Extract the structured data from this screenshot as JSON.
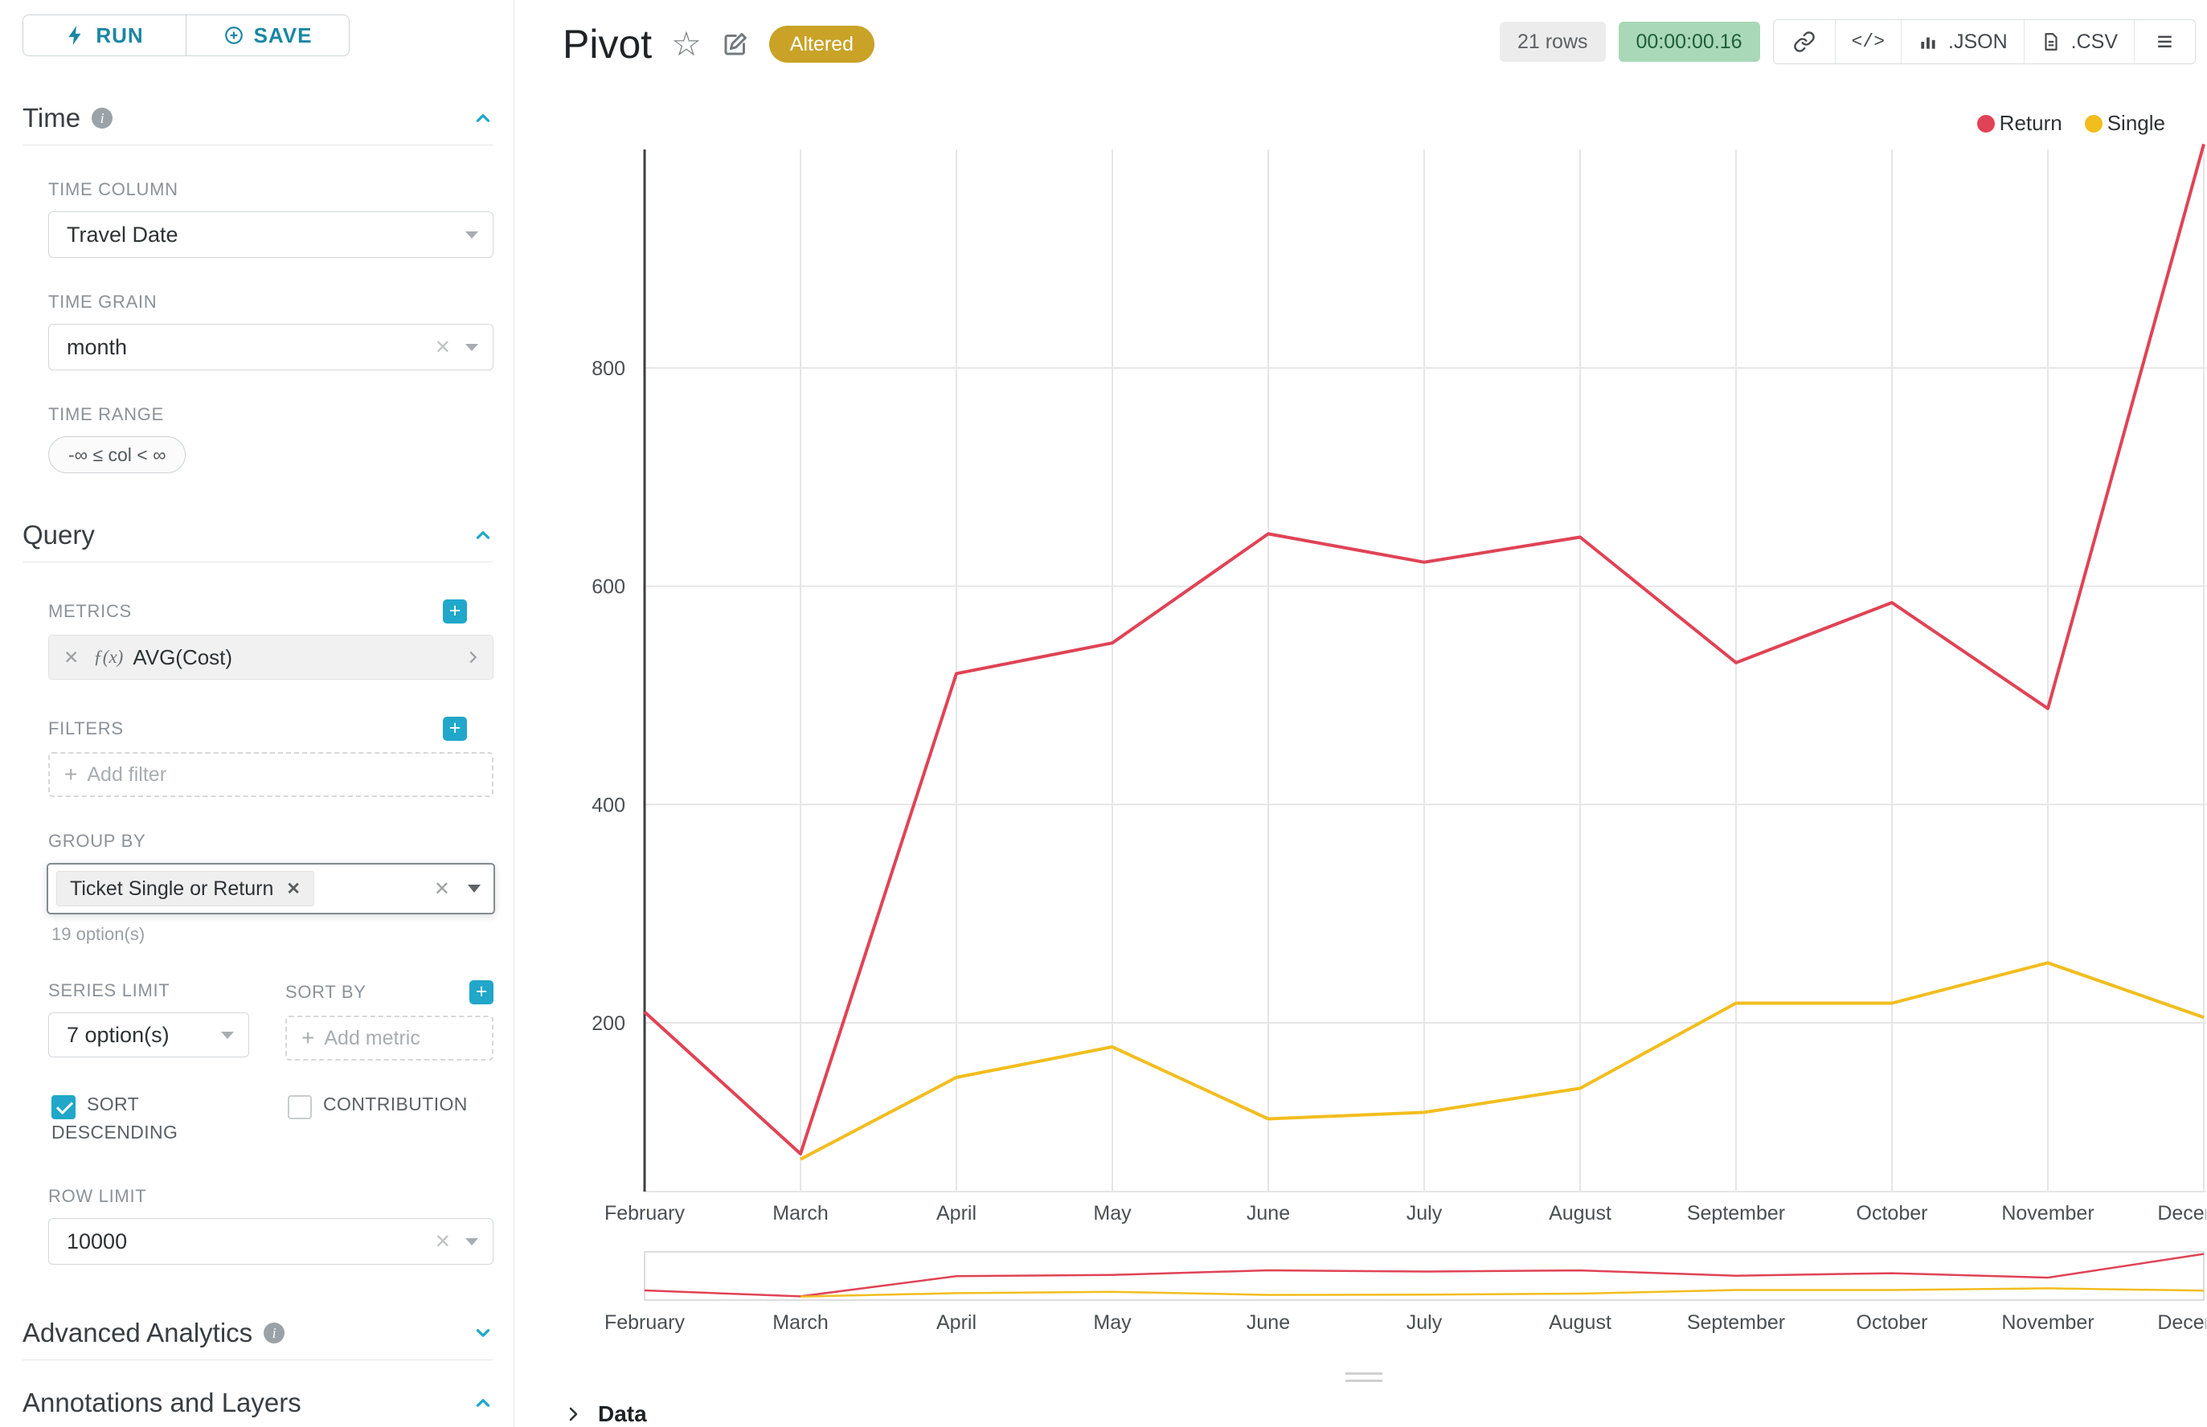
{
  "colors": {
    "accent_teal": "#20a7c9",
    "series_return": "#e04355",
    "series_single": "#f2bd1e",
    "altered_badge_bg": "#c9a227",
    "timer_badge_bg": "#a9d8b8",
    "timer_badge_text": "#1e5f38"
  },
  "sidebar": {
    "run_label": "RUN",
    "save_label": "SAVE",
    "time": {
      "title": "Time",
      "time_column_label": "TIME COLUMN",
      "time_column_value": "Travel Date",
      "time_grain_label": "TIME GRAIN",
      "time_grain_value": "month",
      "time_range_label": "TIME RANGE",
      "time_range_value": "-∞ ≤ col < ∞"
    },
    "query": {
      "title": "Query",
      "metrics_label": "METRICS",
      "metric_fn": "ƒ(x)",
      "metric_value": "AVG(Cost)",
      "filters_label": "FILTERS",
      "add_filter_placeholder": "Add filter",
      "group_by_label": "GROUP BY",
      "group_by_tag": "Ticket Single or Return",
      "group_by_hint": "19 option(s)",
      "series_limit_label": "SERIES LIMIT",
      "series_limit_value": "7 option(s)",
      "sort_by_label": "SORT BY",
      "add_metric_placeholder": "Add metric",
      "sort_descending_label": "SORT DESCENDING",
      "sort_descending_checked": true,
      "contribution_label": "CONTRIBUTION",
      "contribution_checked": false,
      "row_limit_label": "ROW LIMIT",
      "row_limit_value": "10000"
    },
    "advanced_analytics_title": "Advanced Analytics",
    "annotations_title": "Annotations and Layers"
  },
  "header": {
    "title": "Pivot",
    "altered_badge": "Altered",
    "rows_badge": "21 rows",
    "timer_badge": "00:00:00.16",
    "json_button": ".JSON",
    "csv_button": ".CSV",
    "code_glyph": "</>",
    "star_glyph": "☆",
    "menu_glyph": "≡"
  },
  "chart_data": {
    "type": "line",
    "x": [
      "February",
      "March",
      "April",
      "May",
      "June",
      "July",
      "August",
      "September",
      "October",
      "November",
      "December"
    ],
    "series": [
      {
        "name": "Return",
        "color": "#e04355",
        "values": [
          210,
          80,
          520,
          548,
          648,
          622,
          645,
          530,
          585,
          488,
          1005
        ]
      },
      {
        "name": "Single",
        "color": "#f2bd1e",
        "values": [
          null,
          75,
          150,
          178,
          112,
          118,
          140,
          218,
          218,
          255,
          205
        ]
      }
    ],
    "yticks": [
      200,
      400,
      600,
      800
    ],
    "ylim": [
      45,
      1000
    ],
    "grid": true,
    "legend_position": "top-right",
    "has_range_selector": true
  },
  "footer": {
    "data_label": "Data"
  }
}
